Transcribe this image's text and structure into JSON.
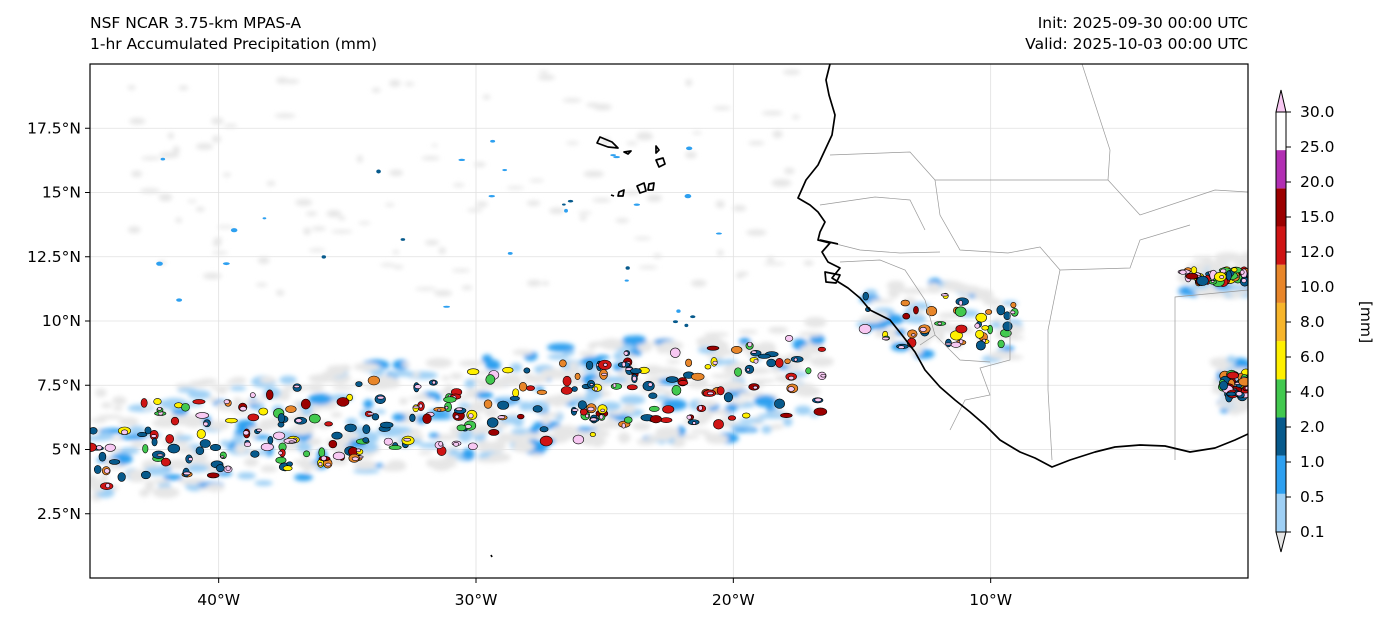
{
  "header": {
    "model": "NSF NCAR 3.75-km MPAS-A",
    "field": "1-hr Accumulated Precipitation (mm)",
    "init": "Init: 2025-09-30 00:00 UTC",
    "valid": "Valid: 2025-10-03 00:00 UTC"
  },
  "map": {
    "region": "Tropical Atlantic and West Africa",
    "extent_lon": [
      -45,
      0
    ],
    "extent_lat": [
      0,
      20
    ],
    "lat_ticks": [
      {
        "value": 2.5,
        "label": "2.5°N"
      },
      {
        "value": 5,
        "label": "5°N"
      },
      {
        "value": 7.5,
        "label": "7.5°N"
      },
      {
        "value": 10,
        "label": "10°N"
      },
      {
        "value": 12.5,
        "label": "12.5°N"
      },
      {
        "value": 15,
        "label": "15°N"
      },
      {
        "value": 17.5,
        "label": "17.5°N"
      }
    ],
    "lon_ticks": [
      {
        "value": -40,
        "label": "40°W"
      },
      {
        "value": -30,
        "label": "30°W"
      },
      {
        "value": -20,
        "label": "20°W"
      },
      {
        "value": -10,
        "label": "10°W"
      }
    ],
    "precip_features": [
      {
        "name": "ITCZ convective band",
        "lon_range": [
          -45,
          -16.5
        ],
        "lat_range": [
          3,
          10
        ]
      },
      {
        "name": "Guinea / Mali convection",
        "lon_range": [
          -15,
          -9
        ],
        "lat_range": [
          8.5,
          11.5
        ]
      },
      {
        "name": "Burkina Faso cell",
        "lon_range": [
          -2.5,
          0
        ],
        "lat_range": [
          11,
          12.5
        ]
      },
      {
        "name": "Ghana coast cell",
        "lon_range": [
          -1,
          0
        ],
        "lat_range": [
          6.5,
          8.5
        ]
      }
    ]
  },
  "colorbar": {
    "label": "[mm]",
    "levels": [
      "0.1",
      "0.5",
      "1.0",
      "2.0",
      "4.0",
      "6.0",
      "8.0",
      "10.0",
      "12.0",
      "15.0",
      "20.0",
      "25.0",
      "30.0"
    ],
    "colors": [
      "#e6e6e6",
      "#9fd0f5",
      "#2ea0f0",
      "#075a8c",
      "#42c94f",
      "#fff000",
      "#f7b52b",
      "#e8862a",
      "#cf1414",
      "#9b0000",
      "#b22fb3",
      "#f7c8f2"
    ]
  }
}
